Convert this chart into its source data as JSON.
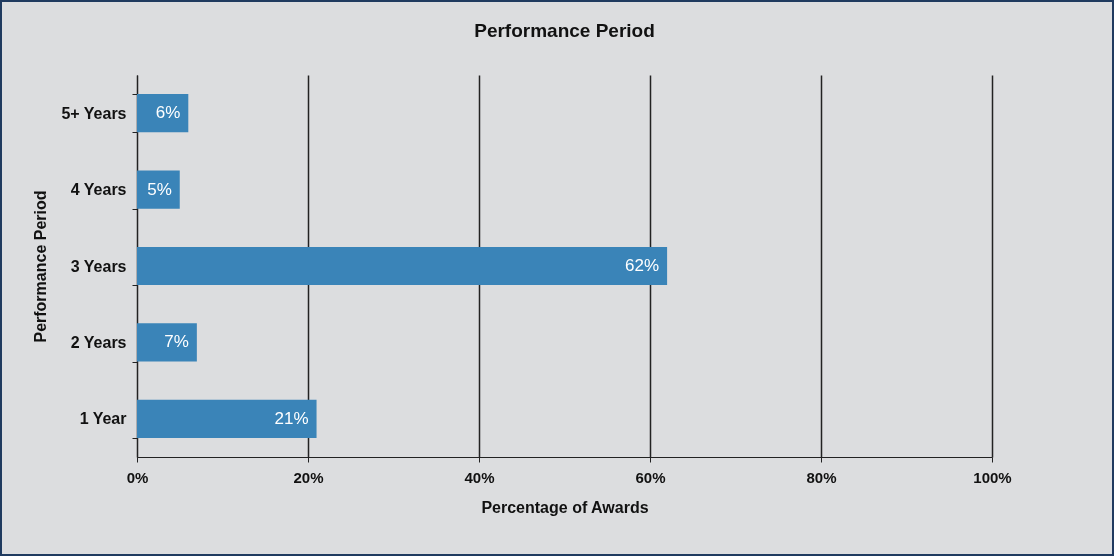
{
  "chart_data": {
    "type": "bar",
    "orientation": "horizontal",
    "title": "Performance Period",
    "xlabel": "Percentage of Awards",
    "ylabel": "Performance Period",
    "categories": [
      "5+ Years",
      "4 Years",
      "3 Years",
      "2 Years",
      "1 Year"
    ],
    "values": [
      6,
      5,
      62,
      7,
      21
    ],
    "value_labels": [
      "6%",
      "5%",
      "62%",
      "7%",
      "21%"
    ],
    "color": "#3a84b8",
    "xlim": [
      0,
      100
    ],
    "xticks": [
      {
        "value": 0,
        "label": "0%"
      },
      {
        "value": 20,
        "label": "20%"
      },
      {
        "value": 40,
        "label": "40%"
      },
      {
        "value": 60,
        "label": "60%"
      },
      {
        "value": 80,
        "label": "80%"
      },
      {
        "value": 100,
        "label": "100%"
      }
    ],
    "grid": "x"
  }
}
